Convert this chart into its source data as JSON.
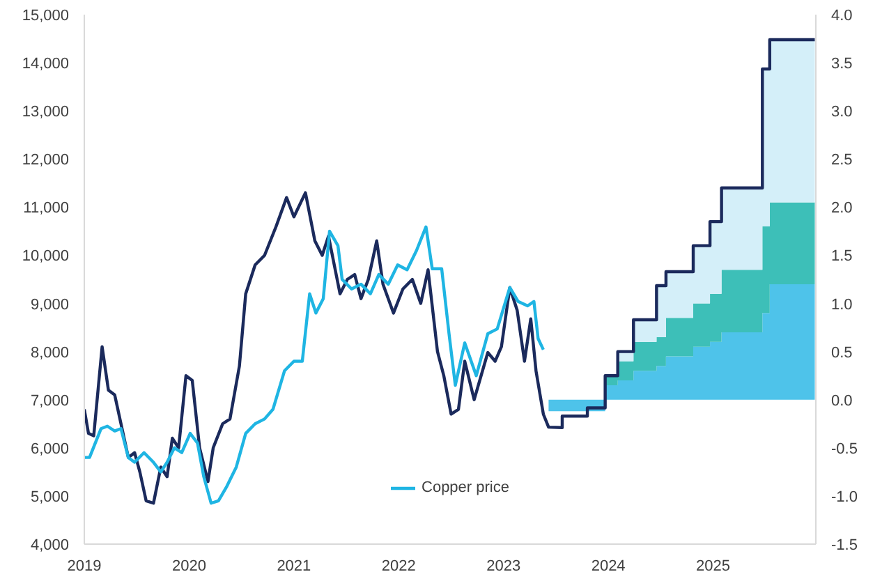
{
  "chart_data": {
    "type": "line",
    "stacked": true,
    "legend": "bottom",
    "grid": false,
    "xlim": [
      2019,
      2025.98
    ],
    "xticks": [
      2019,
      2020,
      2021,
      2022,
      2023,
      2024,
      2025
    ],
    "ylim": [
      4000,
      15000
    ],
    "yticks": [
      {
        "value": 4000,
        "label": "4,000"
      },
      {
        "value": 5000,
        "label": "5,000"
      },
      {
        "value": 6000,
        "label": "6,000"
      },
      {
        "value": 7000,
        "label": "7,000"
      },
      {
        "value": 8000,
        "label": "8,000"
      },
      {
        "value": 9000,
        "label": "9,000"
      },
      {
        "value": 10000,
        "label": "10,000"
      },
      {
        "value": 11000,
        "label": "11,000"
      },
      {
        "value": 12000,
        "label": "12,000"
      },
      {
        "value": 13000,
        "label": "13,000"
      },
      {
        "value": 14000,
        "label": "14,000"
      },
      {
        "value": 15000,
        "label": "15,000"
      }
    ],
    "y2lim": [
      -1.5,
      4.0
    ],
    "y2ticks": [
      {
        "value": -1.5,
        "label": "-1.5"
      },
      {
        "value": -1.0,
        "label": "-1.0"
      },
      {
        "value": -0.5,
        "label": "-0.5"
      },
      {
        "value": 0,
        "label": "0.0"
      },
      {
        "value": 0.5,
        "label": "0.5"
      },
      {
        "value": 1.0,
        "label": "1.0"
      },
      {
        "value": 1.5,
        "label": "1.5"
      },
      {
        "value": 2.0,
        "label": "2.0"
      },
      {
        "value": 2.5,
        "label": "2.5"
      },
      {
        "value": 3.0,
        "label": "3.0"
      },
      {
        "value": 3.5,
        "label": "3.5"
      },
      {
        "value": 4.0,
        "label": "4.0"
      }
    ],
    "series": [
      {
        "type": "area",
        "axis": "y2",
        "color": "#4ec3ea",
        "x": [
          2023.43,
          2023.97,
          2023.97,
          2024.09,
          2024.09,
          2024.24,
          2024.24,
          2024.46,
          2024.46,
          2024.55,
          2024.55,
          2024.81,
          2024.81,
          2024.97,
          2024.97,
          2025.08,
          2025.08,
          2025.47,
          2025.47,
          2025.54,
          2025.54,
          2025.97
        ],
        "values": [
          -0.12,
          -0.12,
          0.15,
          0.15,
          0.2,
          0.2,
          0.3,
          0.3,
          0.35,
          0.35,
          0.45,
          0.45,
          0.55,
          0.55,
          0.6,
          0.6,
          0.7,
          0.7,
          0.9,
          0.9,
          1.2,
          1.2
        ]
      },
      {
        "type": "area",
        "axis": "y2",
        "color": "#3dbfb8",
        "x": [
          2023.43,
          2023.97,
          2023.97,
          2024.09,
          2024.09,
          2024.24,
          2024.24,
          2024.46,
          2024.46,
          2024.55,
          2024.55,
          2024.81,
          2024.81,
          2024.97,
          2024.97,
          2025.08,
          2025.08,
          2025.47,
          2025.47,
          2025.54,
          2025.54,
          2025.97
        ],
        "values": [
          0,
          0,
          0.1,
          0.1,
          0.2,
          0.2,
          0.3,
          0.3,
          0.3,
          0.3,
          0.4,
          0.4,
          0.45,
          0.45,
          0.5,
          0.5,
          0.65,
          0.65,
          0.9,
          0.9,
          0.85,
          0.85
        ]
      },
      {
        "type": "area",
        "axis": "y2",
        "color": "#d4eff9",
        "x": [
          2023.43,
          2023.97,
          2023.97,
          2024.09,
          2024.09,
          2024.24,
          2024.24,
          2024.46,
          2024.46,
          2024.55,
          2024.55,
          2024.81,
          2024.81,
          2024.97,
          2024.97,
          2025.08,
          2025.08,
          2025.47,
          2025.47,
          2025.54,
          2025.54,
          2025.97
        ],
        "values": [
          0,
          0,
          0,
          0,
          0.1,
          0.1,
          0.23,
          0.23,
          0.53,
          0.53,
          0.48,
          0.48,
          0.6,
          0.6,
          0.75,
          0.75,
          0.85,
          0.85,
          1.63,
          1.63,
          1.69,
          1.69
        ]
      },
      {
        "color": "#1b2a5c",
        "x": [
          2019.0,
          2019.04,
          2019.09,
          2019.17,
          2019.23,
          2019.29,
          2019.35,
          2019.42,
          2019.48,
          2019.53,
          2019.59,
          2019.66,
          2019.73,
          2019.79,
          2019.84,
          2019.9,
          2019.97,
          2020.03,
          2020.1,
          2020.18,
          2020.23,
          2020.32,
          2020.39,
          2020.48,
          2020.54,
          2020.63,
          2020.72,
          2020.83,
          2020.93,
          2021.0,
          2021.11,
          2021.2,
          2021.27,
          2021.33,
          2021.44,
          2021.51,
          2021.58,
          2021.64,
          2021.71,
          2021.79,
          2021.85,
          2021.95,
          2022.04,
          2022.13,
          2022.21,
          2022.28,
          2022.37,
          2022.43,
          2022.5,
          2022.57,
          2022.63,
          2022.72,
          2022.85,
          2022.92,
          2022.98,
          2023.06,
          2023.13,
          2023.2,
          2023.26,
          2023.31,
          2023.38,
          2023.43,
          2023.56,
          2023.56,
          2023.8,
          2023.8,
          2023.97,
          2023.97,
          2024.09,
          2024.09,
          2024.24,
          2024.24,
          2024.46,
          2024.46,
          2024.55,
          2024.55,
          2024.81,
          2024.81,
          2024.97,
          2024.97,
          2025.08,
          2025.08,
          2025.47,
          2025.47,
          2025.54,
          2025.54,
          2025.97
        ],
        "values": [
          6800,
          6300,
          6250,
          8100,
          7200,
          7100,
          6500,
          5800,
          5900,
          5500,
          4900,
          4850,
          5600,
          5400,
          6200,
          6000,
          7500,
          7400,
          6000,
          5300,
          6000,
          6500,
          6600,
          7700,
          9200,
          9800,
          10000,
          10600,
          11200,
          10800,
          11300,
          10300,
          10000,
          10400,
          9200,
          9500,
          9600,
          9100,
          9500,
          10300,
          9400,
          8800,
          9300,
          9500,
          9000,
          9700,
          8000,
          7500,
          6700,
          6800,
          7800,
          7000,
          7980,
          7800,
          8100,
          9330,
          8860,
          7800,
          8680,
          7600,
          6700,
          6430,
          6420,
          6660,
          6660,
          6830,
          6830,
          7500,
          7500,
          8000,
          8000,
          8660,
          8660,
          9370,
          9370,
          9660,
          9660,
          10200,
          10200,
          10700,
          10700,
          11400,
          11400,
          13870,
          13870,
          14480,
          14480
        ]
      },
      {
        "name": "Copper price",
        "color": "#1fb5e3",
        "x": [
          2019.0,
          2019.05,
          2019.16,
          2019.22,
          2019.29,
          2019.35,
          2019.42,
          2019.48,
          2019.57,
          2019.66,
          2019.73,
          2019.79,
          2019.86,
          2019.93,
          2020.01,
          2020.08,
          2020.14,
          2020.21,
          2020.28,
          2020.36,
          2020.45,
          2020.54,
          2020.63,
          2020.72,
          2020.8,
          2020.91,
          2021.0,
          2021.08,
          2021.15,
          2021.21,
          2021.28,
          2021.34,
          2021.42,
          2021.46,
          2021.55,
          2021.64,
          2021.73,
          2021.81,
          2021.9,
          2021.99,
          2022.08,
          2022.17,
          2022.26,
          2022.32,
          2022.41,
          2022.48,
          2022.54,
          2022.63,
          2022.74,
          2022.85,
          2022.94,
          2023.06,
          2023.14,
          2023.23,
          2023.29,
          2023.33,
          2023.38
        ],
        "values": [
          5800,
          5800,
          6400,
          6450,
          6350,
          6400,
          5800,
          5700,
          5900,
          5700,
          5500,
          5700,
          6000,
          5900,
          6300,
          6100,
          5400,
          4850,
          4900,
          5200,
          5600,
          6300,
          6500,
          6600,
          6800,
          7600,
          7800,
          7800,
          9200,
          8800,
          9100,
          10500,
          10200,
          9500,
          9300,
          9400,
          9200,
          9600,
          9400,
          9800,
          9700,
          10100,
          10590,
          9720,
          9720,
          8370,
          7300,
          8180,
          7500,
          8370,
          8470,
          9330,
          9040,
          8950,
          9040,
          8270,
          8040
        ]
      }
    ]
  }
}
